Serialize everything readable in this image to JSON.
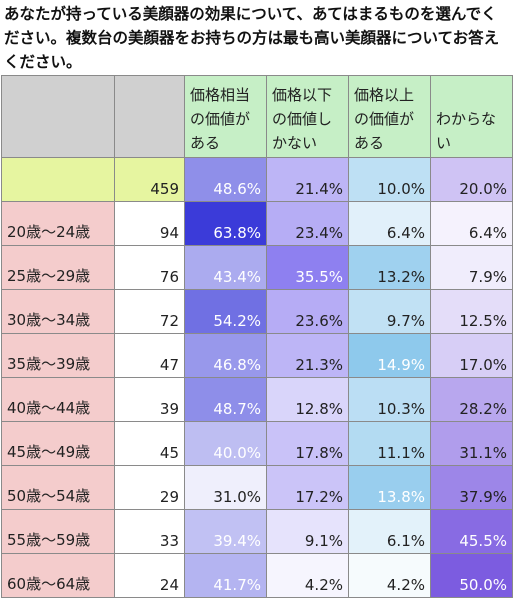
{
  "title": "あなたが持っている美顔器の効果について、あてはまるものを選んでください。複数台の美顔器をお持ちの方は最も高い美顔器についてお答えください。",
  "chart_data": {
    "type": "table",
    "columns": [
      "価格相当の価値がある",
      "価格以下の価値しかない",
      "価格以上の価値がある",
      "わからない"
    ],
    "column_colors": [
      "#3b3bd9",
      "#8e80f0",
      "#8ec9ec",
      "#7c5ce0"
    ],
    "rows": [
      {
        "label": "",
        "n": "459",
        "values": [
          48.6,
          21.4,
          10.0,
          20.0
        ]
      },
      {
        "label": "20歳～24歳",
        "n": "94",
        "values": [
          63.8,
          23.4,
          6.4,
          6.4
        ]
      },
      {
        "label": "25歳～29歳",
        "n": "76",
        "values": [
          43.4,
          35.5,
          13.2,
          7.9
        ]
      },
      {
        "label": "30歳～34歳",
        "n": "72",
        "values": [
          54.2,
          23.6,
          9.7,
          12.5
        ]
      },
      {
        "label": "35歳～39歳",
        "n": "47",
        "values": [
          46.8,
          21.3,
          14.9,
          17.0
        ]
      },
      {
        "label": "40歳～44歳",
        "n": "39",
        "values": [
          48.7,
          12.8,
          10.3,
          28.2
        ]
      },
      {
        "label": "45歳～49歳",
        "n": "45",
        "values": [
          40.0,
          17.8,
          11.1,
          31.1
        ]
      },
      {
        "label": "50歳～54歳",
        "n": "29",
        "values": [
          31.0,
          17.2,
          13.8,
          37.9
        ]
      },
      {
        "label": "55歳～59歳",
        "n": "33",
        "values": [
          39.4,
          9.1,
          6.1,
          45.5
        ]
      },
      {
        "label": "60歳～64歳",
        "n": "24",
        "values": [
          41.7,
          4.2,
          4.2,
          50.0
        ]
      }
    ]
  }
}
